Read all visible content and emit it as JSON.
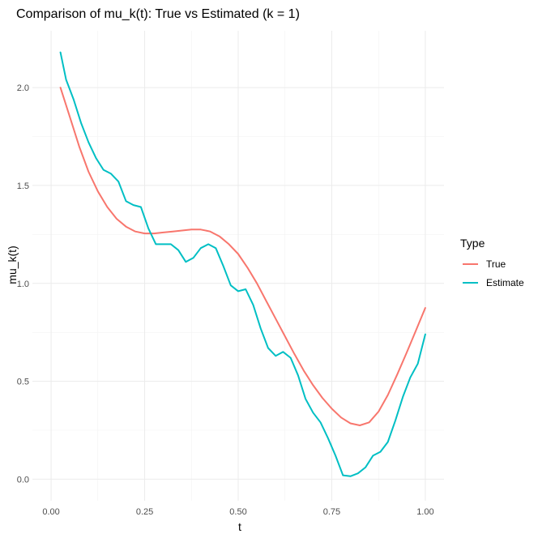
{
  "chart_data": {
    "type": "line",
    "title": "Comparison of mu_k(t): True vs Estimated (k = 1)",
    "xlabel": "t",
    "ylabel": "mu_k(t)",
    "xlim": [
      0,
      1
    ],
    "ylim": [
      0,
      2.2
    ],
    "x_ticks": [
      0.0,
      0.25,
      0.5,
      0.75,
      1.0
    ],
    "x_tick_labels": [
      "0.00",
      "0.25",
      "0.50",
      "0.75",
      "1.00"
    ],
    "y_ticks": [
      0.0,
      0.5,
      1.0,
      1.5,
      2.0
    ],
    "y_tick_labels": [
      "0.0",
      "0.5",
      "1.0",
      "1.5",
      "2.0"
    ],
    "grid": true,
    "legend": {
      "title": "Type",
      "position": "right"
    },
    "series": [
      {
        "name": "True",
        "color": "#F8766D",
        "x": [
          0.025,
          0.05,
          0.075,
          0.1,
          0.125,
          0.15,
          0.175,
          0.2,
          0.225,
          0.25,
          0.275,
          0.3,
          0.325,
          0.35,
          0.375,
          0.4,
          0.425,
          0.45,
          0.475,
          0.5,
          0.525,
          0.55,
          0.575,
          0.6,
          0.625,
          0.65,
          0.675,
          0.7,
          0.725,
          0.75,
          0.775,
          0.8,
          0.825,
          0.85,
          0.875,
          0.9,
          0.925,
          0.95,
          0.975,
          1.0
        ],
        "y": [
          2.0,
          1.85,
          1.7,
          1.57,
          1.47,
          1.39,
          1.33,
          1.29,
          1.265,
          1.255,
          1.255,
          1.26,
          1.265,
          1.27,
          1.275,
          1.275,
          1.265,
          1.24,
          1.2,
          1.15,
          1.08,
          1.0,
          0.91,
          0.82,
          0.73,
          0.64,
          0.555,
          0.48,
          0.415,
          0.36,
          0.315,
          0.285,
          0.275,
          0.29,
          0.345,
          0.43,
          0.535,
          0.645,
          0.76,
          0.875
        ]
      },
      {
        "name": "Estimate",
        "color": "#00BFC4",
        "x": [
          0.025,
          0.04,
          0.06,
          0.08,
          0.1,
          0.12,
          0.14,
          0.16,
          0.18,
          0.2,
          0.22,
          0.24,
          0.26,
          0.28,
          0.3,
          0.32,
          0.34,
          0.36,
          0.38,
          0.4,
          0.42,
          0.44,
          0.46,
          0.48,
          0.5,
          0.52,
          0.54,
          0.56,
          0.58,
          0.6,
          0.62,
          0.64,
          0.66,
          0.68,
          0.7,
          0.72,
          0.74,
          0.76,
          0.78,
          0.8,
          0.82,
          0.84,
          0.86,
          0.88,
          0.9,
          0.92,
          0.94,
          0.96,
          0.98,
          1.0
        ],
        "y": [
          2.18,
          2.04,
          1.94,
          1.82,
          1.72,
          1.64,
          1.58,
          1.56,
          1.52,
          1.42,
          1.4,
          1.39,
          1.28,
          1.2,
          1.2,
          1.2,
          1.17,
          1.11,
          1.13,
          1.18,
          1.2,
          1.18,
          1.09,
          0.99,
          0.96,
          0.97,
          0.89,
          0.77,
          0.67,
          0.63,
          0.65,
          0.62,
          0.53,
          0.41,
          0.34,
          0.29,
          0.21,
          0.12,
          0.02,
          0.015,
          0.03,
          0.06,
          0.12,
          0.14,
          0.19,
          0.3,
          0.42,
          0.52,
          0.59,
          0.74
        ]
      }
    ]
  }
}
